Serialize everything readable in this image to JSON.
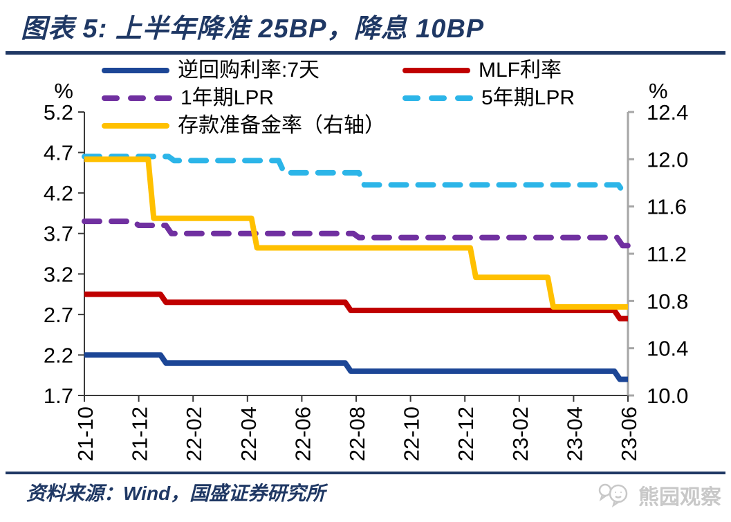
{
  "header": {
    "title": "图表 5:  上半年降准 25BP，降息 10BP"
  },
  "colors": {
    "title_navy": "#1F3864",
    "axis": "#3A3A3A",
    "right_axis": "#A6A6A6",
    "watermark_gray": "#C8C8C8"
  },
  "legend": {
    "items": [
      {
        "label": "逆回购利率:7天",
        "color": "#1C4696",
        "dash": false
      },
      {
        "label": "MLF利率",
        "color": "#C00000",
        "dash": false
      },
      {
        "label": "1年期LPR",
        "color": "#7030A0",
        "dash": true
      },
      {
        "label": "5年期LPR",
        "color": "#2CB5E8",
        "dash": true
      },
      {
        "label": "存款准备金率（右轴）",
        "color": "#FFC000",
        "dash": false
      }
    ]
  },
  "chart_data": {
    "type": "line",
    "title": "上半年降准 25BP，降息 10BP",
    "x_unit": "months since 2021-10",
    "x_axis": {
      "labels": [
        "21-10",
        "21-12",
        "22-02",
        "22-04",
        "22-06",
        "22-08",
        "22-10",
        "22-12",
        "23-02",
        "23-04",
        "23-06"
      ],
      "months_total": 20,
      "tick_every_months": 2
    },
    "left_axis": {
      "unit": "%",
      "min": 1.7,
      "max": 5.2,
      "ticks": [
        5.2,
        4.7,
        4.2,
        3.7,
        3.2,
        2.7,
        2.2,
        1.7
      ]
    },
    "right_axis": {
      "unit": "%",
      "min": 10.0,
      "max": 12.4,
      "ticks": [
        12.4,
        12.0,
        11.6,
        11.2,
        10.8,
        10.4,
        10.0
      ]
    },
    "grid": false,
    "series": [
      {
        "name": "逆回购利率:7天",
        "axis": "left",
        "style": "solid",
        "color": "#1C4696",
        "steps": [
          [
            0,
            2.2
          ],
          [
            2.9,
            2.1
          ],
          [
            9.7,
            2.0
          ],
          [
            19.6,
            1.9
          ]
        ]
      },
      {
        "name": "MLF利率",
        "axis": "left",
        "style": "solid",
        "color": "#C00000",
        "steps": [
          [
            0,
            2.95
          ],
          [
            2.9,
            2.85
          ],
          [
            9.7,
            2.75
          ],
          [
            19.6,
            2.65
          ]
        ]
      },
      {
        "name": "1年期LPR",
        "axis": "left",
        "style": "dashed",
        "color": "#7030A0",
        "steps": [
          [
            0,
            3.85
          ],
          [
            1.9,
            3.8
          ],
          [
            3.1,
            3.7
          ],
          [
            10.0,
            3.65
          ],
          [
            19.7,
            3.55
          ]
        ]
      },
      {
        "name": "5年期LPR",
        "axis": "left",
        "style": "dashed",
        "color": "#2CB5E8",
        "steps": [
          [
            0,
            4.65
          ],
          [
            3.2,
            4.6
          ],
          [
            7.25,
            4.45
          ],
          [
            10.2,
            4.3
          ],
          [
            19.75,
            4.2
          ]
        ]
      },
      {
        "name": "存款准备金率（右轴）",
        "axis": "right",
        "style": "solid",
        "color": "#FFC000",
        "steps": [
          [
            0,
            12.0
          ],
          [
            2.45,
            11.5
          ],
          [
            6.25,
            11.25
          ],
          [
            14.3,
            11.0
          ],
          [
            17.15,
            10.75
          ]
        ]
      }
    ]
  },
  "footer": {
    "source": "资料来源：Wind，国盛证券研究所",
    "watermark": "熊园观察"
  }
}
